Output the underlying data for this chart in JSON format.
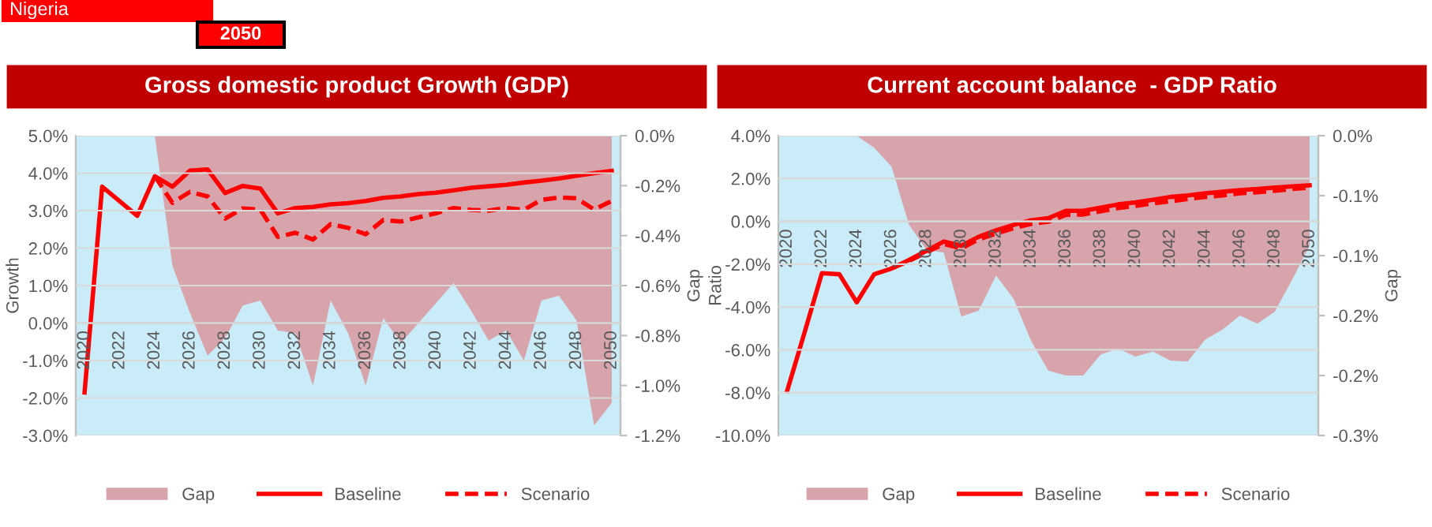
{
  "chart_data": [
    {
      "type": "line",
      "title": "Gross domestic product Growth (GDP)",
      "ylabel": "Growth",
      "y2label": "Gap",
      "annotations": [
        "Nigeria",
        "2050"
      ],
      "categories": [
        "2020",
        null,
        "2022",
        null,
        "2024",
        null,
        "2026",
        null,
        "2028",
        null,
        "2030",
        null,
        "2032",
        null,
        "2034",
        null,
        "2036",
        null,
        "2038",
        null,
        "2040",
        null,
        "2042",
        null,
        "2044",
        null,
        "2046",
        null,
        "2048",
        null,
        "2050"
      ],
      "series": [
        {
          "name": "Gap",
          "type": "area",
          "axis": "y2",
          "color": "#d8a4ab",
          "values": [
            0,
            0,
            0,
            0,
            0,
            -0.52,
            -0.71,
            -0.88,
            -0.81,
            -0.68,
            -0.66,
            -0.78,
            -0.79,
            -1.0,
            -0.66,
            -0.79,
            -1.0,
            -0.73,
            -0.83,
            -0.75,
            -0.67,
            -0.59,
            -0.7,
            -0.82,
            -0.78,
            -0.9,
            -0.66,
            -0.64,
            -0.74,
            -1.16,
            -1.07
          ]
        },
        {
          "name": "Baseline",
          "type": "line",
          "color": "#ff0000",
          "line_style": "solid",
          "values": [
            -1.85,
            3.64,
            3.25,
            2.86,
            3.92,
            3.64,
            4.07,
            4.1,
            3.47,
            3.66,
            3.59,
            2.93,
            3.07,
            3.1,
            3.17,
            3.2,
            3.26,
            3.34,
            3.38,
            3.44,
            3.48,
            3.54,
            3.61,
            3.65,
            3.69,
            3.75,
            3.8,
            3.86,
            3.93,
            4.0,
            4.06
          ]
        },
        {
          "name": "Scenario",
          "type": "line",
          "color": "#ff0000",
          "line_style": "dashed",
          "values": [
            null,
            null,
            null,
            null,
            3.92,
            3.21,
            3.5,
            3.38,
            2.79,
            3.06,
            3.03,
            2.3,
            2.41,
            2.23,
            2.64,
            2.54,
            2.37,
            2.75,
            2.71,
            2.82,
            2.93,
            3.07,
            3.02,
            3.0,
            3.07,
            3.02,
            3.29,
            3.35,
            3.33,
            3.03,
            3.26
          ]
        }
      ],
      "ylim": [
        -3,
        5
      ],
      "yticks": [
        {
          "value": -3,
          "label": "-3.0%"
        },
        {
          "value": -2,
          "label": "-2.0%"
        },
        {
          "value": -1,
          "label": "-1.0%"
        },
        {
          "value": 0,
          "label": "0.0%"
        },
        {
          "value": 1,
          "label": "1.0%"
        },
        {
          "value": 2,
          "label": "2.0%"
        },
        {
          "value": 3,
          "label": "3.0%"
        },
        {
          "value": 4,
          "label": "4.0%"
        },
        {
          "value": 5,
          "label": "5.0%"
        }
      ],
      "y2lim": [
        -1.2,
        0
      ],
      "y2ticks": [
        {
          "value": -1.2,
          "label": "-1.2%"
        },
        {
          "value": -1.0,
          "label": "-1.0%"
        },
        {
          "value": -0.8,
          "label": "-0.8%"
        },
        {
          "value": -0.6,
          "label": "-0.6%"
        },
        {
          "value": -0.4,
          "label": "-0.4%"
        },
        {
          "value": -0.2,
          "label": "-0.2%"
        },
        {
          "value": 0,
          "label": "0.0%"
        }
      ],
      "bands": [
        {
          "axis": "y",
          "from": -3,
          "to": 5,
          "color": "#c9ecf8"
        }
      ],
      "grid": "y",
      "legend": "bottom"
    },
    {
      "type": "line",
      "title": "Current account balance  - GDP Ratio",
      "ylabel": "Ratio",
      "y2label": "Gap",
      "categories": [
        "2020",
        null,
        "2022",
        null,
        "2024",
        null,
        "2026",
        null,
        "2028",
        null,
        "2030",
        null,
        "2032",
        null,
        "2034",
        null,
        "2036",
        null,
        "2038",
        null,
        "2040",
        null,
        "2042",
        null,
        "2044",
        null,
        "2046",
        null,
        "2048",
        null,
        "2050"
      ],
      "series": [
        {
          "name": "Gap",
          "type": "area",
          "axis": "y2",
          "color": "#d8a4ab",
          "values": [
            0,
            0,
            0,
            0,
            0,
            -0.012,
            -0.031,
            -0.089,
            -0.114,
            -0.117,
            -0.181,
            -0.175,
            -0.14,
            -0.163,
            -0.205,
            -0.235,
            -0.24,
            -0.24,
            -0.219,
            -0.213,
            -0.221,
            -0.216,
            -0.225,
            -0.226,
            -0.204,
            -0.194,
            -0.18,
            -0.188,
            -0.176,
            -0.144,
            -0.11
          ]
        },
        {
          "name": "Baseline",
          "type": "line",
          "color": "#ff0000",
          "line_style": "solid",
          "values": [
            -7.93,
            -5.2,
            -2.42,
            -2.47,
            -3.78,
            -2.47,
            -2.2,
            -1.8,
            -1.38,
            -0.94,
            -1.14,
            -0.72,
            -0.42,
            -0.17,
            0.05,
            0.15,
            0.49,
            0.49,
            0.64,
            0.79,
            0.89,
            1.01,
            1.14,
            1.21,
            1.31,
            1.38,
            1.46,
            1.51,
            1.58,
            1.63,
            1.68
          ]
        },
        {
          "name": "Scenario",
          "type": "line",
          "color": "#ff0000",
          "line_style": "dashed",
          "values": [
            null,
            null,
            null,
            null,
            null,
            null,
            -2.2,
            -1.85,
            -1.45,
            -1.05,
            -1.26,
            -0.84,
            -0.57,
            -0.32,
            -0.12,
            -0.02,
            0.3,
            0.32,
            0.47,
            0.62,
            0.72,
            0.84,
            0.94,
            1.04,
            1.14,
            1.21,
            1.31,
            1.36,
            1.43,
            1.51,
            1.58
          ]
        }
      ],
      "ylim": [
        -10,
        4
      ],
      "yticks": [
        {
          "value": -10,
          "label": "-10.0%"
        },
        {
          "value": -8,
          "label": "-8.0%"
        },
        {
          "value": -6,
          "label": "-6.0%"
        },
        {
          "value": -4,
          "label": "-4.0%"
        },
        {
          "value": -2,
          "label": "-2.0%"
        },
        {
          "value": 0,
          "label": "0.0%"
        },
        {
          "value": 2,
          "label": "2.0%"
        },
        {
          "value": 4,
          "label": "4.0%"
        }
      ],
      "y2lim": [
        -0.3,
        0
      ],
      "y2ticks": [
        {
          "value": -0.3,
          "label": "-0.3%"
        },
        {
          "value": -0.24,
          "label": "-0.2%"
        },
        {
          "value": -0.18,
          "label": "-0.2%"
        },
        {
          "value": -0.12,
          "label": "-0.1%"
        },
        {
          "value": -0.06,
          "label": "-0.1%"
        },
        {
          "value": 0,
          "label": "0.0%"
        }
      ],
      "bands": [
        {
          "axis": "y",
          "from": -10,
          "to": 4,
          "color": "#c9ecf8"
        }
      ],
      "grid": "y",
      "legend": "bottom"
    }
  ]
}
